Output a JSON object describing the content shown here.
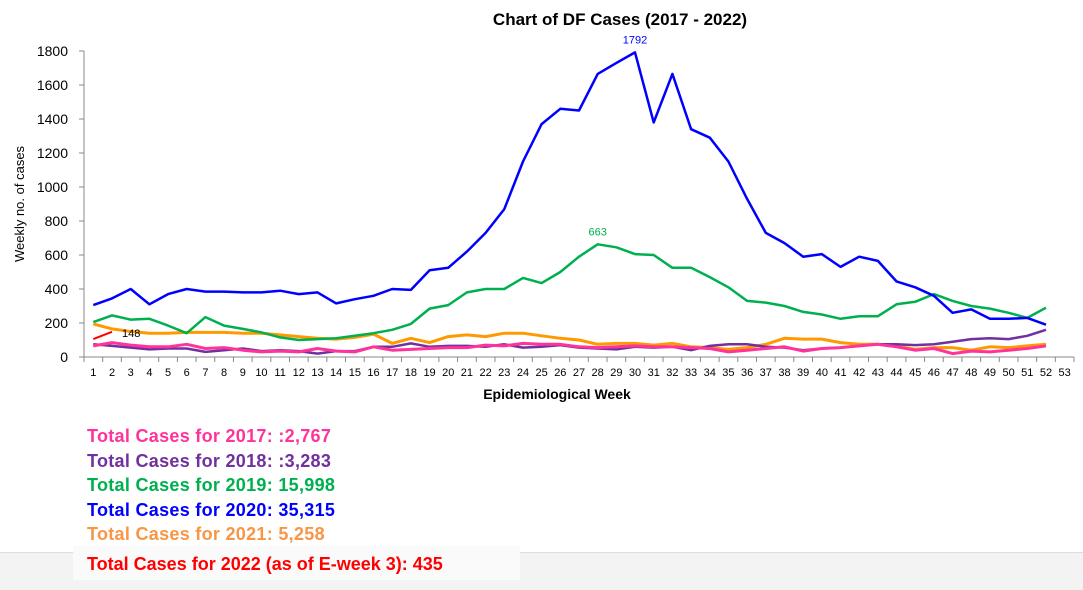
{
  "chart_data": {
    "type": "line",
    "title": "Chart of DF Cases (2017 - 2022)",
    "xlabel": "Epidemiological Week",
    "ylabel": "Weekly no. of cases",
    "ylim": [
      0,
      1800
    ],
    "yticks": [
      0,
      200,
      400,
      600,
      800,
      1000,
      1200,
      1400,
      1600,
      1800
    ],
    "xticks": [
      1,
      2,
      3,
      4,
      5,
      6,
      7,
      8,
      9,
      10,
      11,
      12,
      13,
      14,
      15,
      16,
      17,
      18,
      19,
      20,
      21,
      22,
      23,
      24,
      25,
      26,
      27,
      28,
      29,
      30,
      31,
      32,
      33,
      34,
      35,
      36,
      37,
      38,
      39,
      40,
      41,
      42,
      43,
      44,
      45,
      46,
      47,
      48,
      49,
      50,
      51,
      52,
      53
    ],
    "grid": false,
    "series": [
      {
        "key": "2021",
        "color": "#ff9900",
        "width": 3,
        "values": [
          195,
          165,
          150,
          140,
          140,
          145,
          145,
          145,
          140,
          140,
          130,
          120,
          110,
          105,
          115,
          135,
          80,
          110,
          85,
          120,
          130,
          120,
          140,
          140,
          125,
          110,
          100,
          75,
          80,
          80,
          70,
          80,
          60,
          55,
          45,
          55,
          75,
          110,
          105,
          105,
          85,
          75,
          75,
          65,
          45,
          55,
          55,
          40,
          60,
          55,
          65,
          75
        ]
      },
      {
        "key": "2019",
        "color": "#00b050",
        "width": 2.5,
        "values": [
          205,
          245,
          220,
          225,
          185,
          140,
          235,
          185,
          165,
          145,
          115,
          100,
          105,
          110,
          125,
          140,
          160,
          195,
          285,
          305,
          380,
          400,
          400,
          465,
          435,
          500,
          590,
          663,
          645,
          605,
          600,
          525,
          525,
          470,
          410,
          330,
          320,
          300,
          265,
          250,
          225,
          240,
          240,
          310,
          325,
          370,
          330,
          300,
          285,
          260,
          230,
          290
        ]
      },
      {
        "key": "2020",
        "color": "#0000ff",
        "width": 2.5,
        "values": [
          305,
          345,
          400,
          310,
          370,
          400,
          385,
          385,
          380,
          380,
          390,
          370,
          380,
          315,
          340,
          360,
          400,
          395,
          510,
          525,
          620,
          730,
          870,
          1150,
          1370,
          1460,
          1450,
          1665,
          1730,
          1792,
          1380,
          1665,
          1340,
          1290,
          1150,
          930,
          730,
          670,
          590,
          605,
          530,
          590,
          565,
          445,
          410,
          360,
          260,
          280,
          225,
          225,
          230,
          190
        ]
      },
      {
        "key": "2018",
        "color": "#7030a0",
        "width": 2.5,
        "values": [
          75,
          65,
          55,
          45,
          50,
          50,
          30,
          40,
          50,
          35,
          40,
          35,
          20,
          35,
          35,
          60,
          60,
          80,
          60,
          65,
          65,
          60,
          75,
          55,
          60,
          70,
          55,
          50,
          45,
          60,
          55,
          60,
          40,
          65,
          75,
          75,
          60,
          55,
          40,
          50,
          55,
          65,
          75,
          75,
          70,
          75,
          90,
          105,
          110,
          105,
          125,
          160
        ]
      },
      {
        "key": "2017",
        "color": "#ff3399",
        "width": 3,
        "values": [
          65,
          85,
          70,
          60,
          60,
          75,
          50,
          55,
          40,
          30,
          35,
          30,
          50,
          35,
          30,
          60,
          40,
          45,
          50,
          55,
          55,
          70,
          65,
          80,
          75,
          75,
          60,
          55,
          60,
          65,
          60,
          60,
          55,
          50,
          30,
          40,
          50,
          60,
          35,
          50,
          55,
          65,
          75,
          60,
          40,
          50,
          20,
          35,
          30,
          40,
          50,
          65
        ]
      },
      {
        "key": "2022",
        "color": "#ff0000",
        "width": 2,
        "values": [
          105,
          148
        ]
      }
    ],
    "annotations": [
      {
        "series": "2020",
        "week": 30,
        "text": "1792",
        "color": "#0000ff"
      },
      {
        "series": "2019",
        "week": 28,
        "text": "663",
        "color": "#00b050"
      },
      {
        "series": "2022",
        "week": 2,
        "text": "148",
        "color": "#000000"
      }
    ]
  },
  "totals": [
    {
      "text": "Total Cases for 2017: :2,767",
      "color": "#ff3399"
    },
    {
      "text": "Total Cases for 2018: :3,283",
      "color": "#7030a0"
    },
    {
      "text": "Total Cases for 2019: 15,998",
      "color": "#00b050"
    },
    {
      "text": "Total Cases for 2020: 35,315",
      "color": "#0000ff"
    },
    {
      "text": "Total Cases for 2021: 5,258",
      "color": "#f79646"
    }
  ],
  "total_2022": {
    "text": "Total Cases for 2022 (as of E-week 3): 435",
    "color": "#ff0000"
  }
}
